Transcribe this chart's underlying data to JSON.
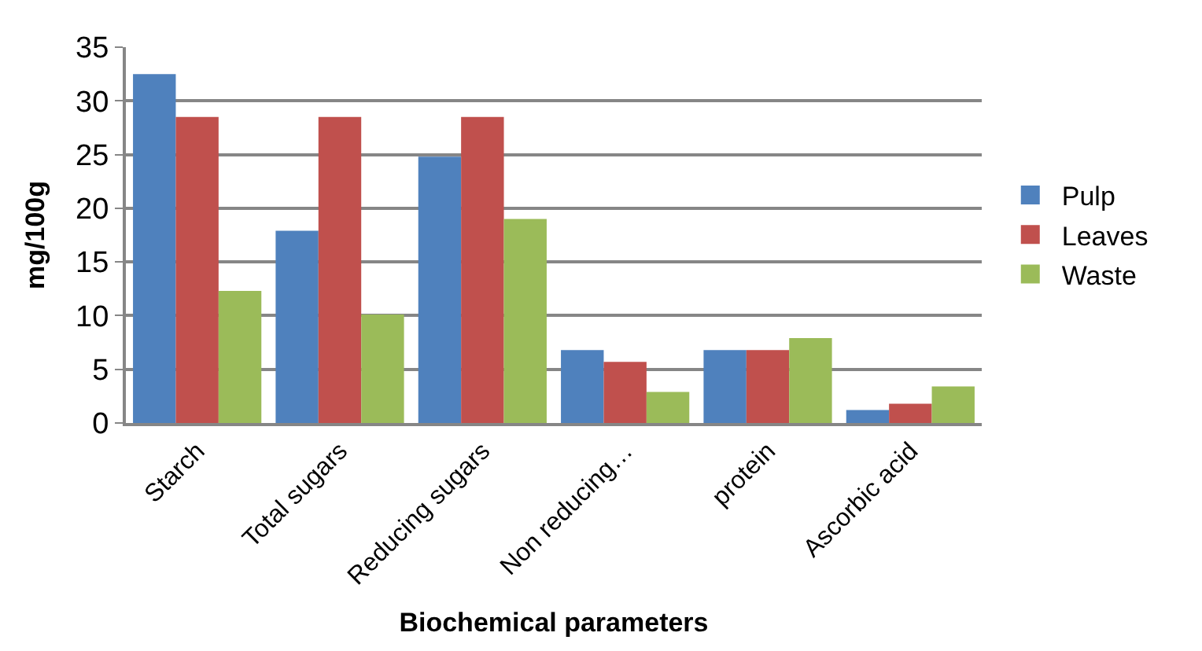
{
  "chart_data": {
    "type": "bar",
    "xlabel": "Biochemical parameters",
    "ylabel": "mg/100g",
    "categories": [
      "Starch",
      "Total sugars",
      "Reducing sugars",
      "Non reducing…",
      "protein",
      "Ascorbic acid"
    ],
    "series": [
      {
        "name": "Pulp",
        "color": "#4f81bd",
        "values": [
          32.5,
          17.9,
          24.8,
          6.8,
          6.8,
          1.2
        ]
      },
      {
        "name": "Leaves",
        "color": "#c0504d",
        "values": [
          28.5,
          28.5,
          28.5,
          5.7,
          6.8,
          1.8
        ]
      },
      {
        "name": "Waste",
        "color": "#9bbb59",
        "values": [
          12.3,
          10.1,
          19.0,
          2.9,
          7.9,
          3.4
        ]
      }
    ],
    "ylim": [
      0,
      35
    ],
    "yticks": [
      0,
      5,
      10,
      15,
      20,
      25,
      30,
      35
    ],
    "grid": "y",
    "legend": "right"
  }
}
